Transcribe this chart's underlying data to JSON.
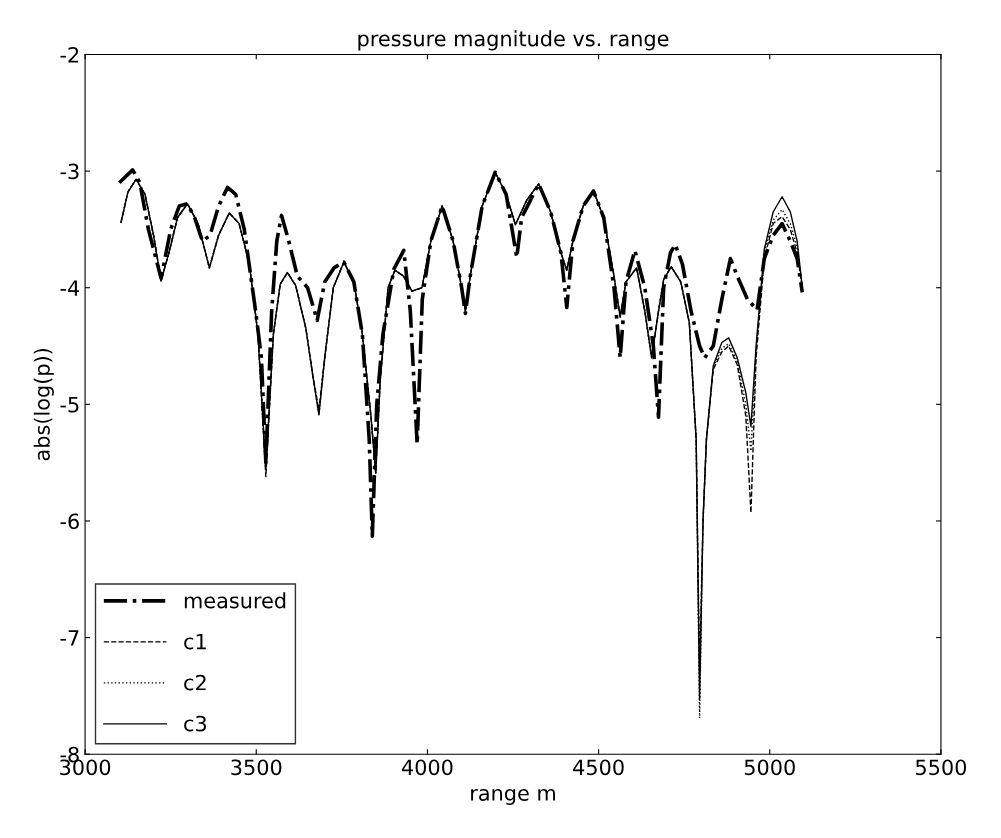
{
  "chart_data": {
    "type": "line",
    "title": "pressure magnitude vs. range",
    "xlabel": "range m",
    "ylabel": "abs(log(p))",
    "xlim": [
      3000,
      5500
    ],
    "xticks": [
      3000,
      3500,
      4000,
      4500,
      5000,
      5500
    ],
    "ylim": [
      -8,
      -2
    ],
    "yticks": [
      -8,
      -7,
      -6,
      -5,
      -4,
      -3,
      -2
    ],
    "grid": false,
    "legend": "bottom left",
    "marker": "none",
    "x": [
      3105,
      3125,
      3149,
      3175,
      3200,
      3222,
      3245,
      3270,
      3299,
      3330,
      3363,
      3390,
      3421,
      3450,
      3480,
      3505,
      3528,
      3550,
      3570,
      3591,
      3615,
      3645,
      3665,
      3683,
      3700,
      3725,
      3756,
      3785,
      3810,
      3835,
      3849,
      3862,
      3885,
      3905,
      3930,
      3955,
      3984,
      4010,
      4043,
      4075,
      4100,
      4111,
      4125,
      4160,
      4198,
      4230,
      4257,
      4290,
      4325,
      4360,
      4390,
      4407,
      4425,
      4455,
      4485,
      4515,
      4545,
      4563,
      4580,
      4611,
      4635,
      4655,
      4675,
      4690,
      4712,
      4740,
      4765,
      4785,
      4795,
      4805,
      4815,
      4835,
      4860,
      4880,
      4905,
      4930,
      4945,
      4960,
      4984,
      5010,
      5036,
      5060,
      5080,
      5095
    ],
    "series": [
      {
        "name": "measured",
        "color": "#000000",
        "line_style": "dashdot",
        "x": [
          3100,
          3139,
          3160,
          3185,
          3222,
          3250,
          3275,
          3299,
          3320,
          3343,
          3365,
          3390,
          3416,
          3440,
          3465,
          3499,
          3515,
          3528,
          3545,
          3560,
          3574,
          3595,
          3620,
          3650,
          3678,
          3700,
          3727,
          3756,
          3785,
          3810,
          3830,
          3839,
          3852,
          3870,
          3902,
          3931,
          3950,
          3970,
          3985,
          4010,
          4043,
          4075,
          4100,
          4111,
          4125,
          4160,
          4198,
          4230,
          4261,
          4275,
          4325,
          4360,
          4390,
          4407,
          4425,
          4455,
          4485,
          4515,
          4545,
          4563,
          4580,
          4606,
          4635,
          4660,
          4675,
          4690,
          4710,
          4724,
          4745,
          4770,
          4795,
          4810,
          4835,
          4860,
          4885,
          4905,
          4935,
          4963,
          4984,
          5010,
          5036,
          5060,
          5080,
          5095
        ],
        "values": [
          -3.1,
          -2.99,
          -3.1,
          -3.5,
          -3.92,
          -3.5,
          -3.3,
          -3.28,
          -3.4,
          -3.6,
          -3.55,
          -3.3,
          -3.14,
          -3.2,
          -3.5,
          -4.22,
          -4.6,
          -5.5,
          -4.2,
          -3.6,
          -3.38,
          -3.6,
          -3.9,
          -4.0,
          -4.28,
          -3.95,
          -3.83,
          -3.78,
          -3.95,
          -4.4,
          -5.3,
          -6.13,
          -5.0,
          -4.4,
          -3.84,
          -3.68,
          -4.2,
          -5.34,
          -4.1,
          -3.6,
          -3.3,
          -3.6,
          -4.0,
          -4.22,
          -3.9,
          -3.3,
          -3.01,
          -3.2,
          -3.74,
          -3.4,
          -3.11,
          -3.35,
          -3.7,
          -4.17,
          -3.6,
          -3.3,
          -3.17,
          -3.4,
          -4.0,
          -4.6,
          -3.95,
          -3.68,
          -4.0,
          -4.5,
          -5.11,
          -4.0,
          -3.7,
          -3.63,
          -3.8,
          -4.2,
          -4.5,
          -4.6,
          -4.5,
          -4.1,
          -3.75,
          -3.9,
          -4.1,
          -4.19,
          -3.75,
          -3.55,
          -3.45,
          -3.6,
          -3.75,
          -4.04
        ]
      },
      {
        "name": "c1",
        "color": "#000000",
        "line_style": "dashed",
        "values": [
          -3.44,
          -3.18,
          -3.07,
          -3.2,
          -3.55,
          -3.94,
          -3.7,
          -3.4,
          -3.28,
          -3.45,
          -3.83,
          -3.55,
          -3.36,
          -3.45,
          -3.8,
          -4.4,
          -5.62,
          -4.4,
          -3.97,
          -3.87,
          -3.98,
          -4.35,
          -4.75,
          -5.05,
          -4.6,
          -4.0,
          -3.78,
          -3.95,
          -4.4,
          -5.1,
          -5.59,
          -4.8,
          -4.0,
          -3.85,
          -3.9,
          -4.03,
          -4.0,
          -3.6,
          -3.3,
          -3.6,
          -4.0,
          -4.2,
          -3.9,
          -3.3,
          -3.01,
          -3.2,
          -3.46,
          -3.25,
          -3.11,
          -3.35,
          -3.7,
          -3.85,
          -3.6,
          -3.3,
          -3.17,
          -3.4,
          -3.9,
          -4.25,
          -3.95,
          -3.83,
          -4.2,
          -4.6,
          -4.2,
          -3.93,
          -3.82,
          -3.95,
          -4.3,
          -5.3,
          -7.3,
          -6.0,
          -5.3,
          -4.7,
          -4.55,
          -4.5,
          -4.66,
          -5.1,
          -5.93,
          -4.6,
          -3.75,
          -3.45,
          -3.39,
          -3.5,
          -3.7,
          -4.0
        ]
      },
      {
        "name": "c2",
        "color": "#000000",
        "line_style": "dotted",
        "values": [
          -3.44,
          -3.18,
          -3.07,
          -3.2,
          -3.55,
          -3.94,
          -3.7,
          -3.4,
          -3.28,
          -3.45,
          -3.83,
          -3.55,
          -3.36,
          -3.45,
          -3.8,
          -4.4,
          -5.56,
          -4.4,
          -3.97,
          -3.87,
          -3.98,
          -4.35,
          -4.75,
          -5.09,
          -4.6,
          -4.0,
          -3.78,
          -3.95,
          -4.4,
          -5.1,
          -5.59,
          -4.8,
          -4.0,
          -3.85,
          -3.9,
          -4.03,
          -4.0,
          -3.6,
          -3.3,
          -3.6,
          -4.0,
          -4.2,
          -3.9,
          -3.3,
          -3.01,
          -3.2,
          -3.46,
          -3.25,
          -3.11,
          -3.35,
          -3.7,
          -3.85,
          -3.6,
          -3.3,
          -3.17,
          -3.4,
          -3.9,
          -4.25,
          -3.95,
          -3.83,
          -4.2,
          -4.6,
          -4.2,
          -3.93,
          -3.82,
          -3.95,
          -4.3,
          -5.3,
          -7.69,
          -6.0,
          -5.3,
          -4.68,
          -4.52,
          -4.48,
          -4.63,
          -5.0,
          -5.4,
          -4.55,
          -3.7,
          -3.42,
          -3.33,
          -3.45,
          -3.65,
          -4.0
        ]
      },
      {
        "name": "c3",
        "color": "#000000",
        "line_style": "solid",
        "values": [
          -3.44,
          -3.18,
          -3.07,
          -3.2,
          -3.55,
          -3.94,
          -3.7,
          -3.4,
          -3.28,
          -3.45,
          -3.83,
          -3.55,
          -3.36,
          -3.45,
          -3.8,
          -4.4,
          -5.56,
          -4.4,
          -3.97,
          -3.87,
          -3.98,
          -4.35,
          -4.75,
          -5.09,
          -4.6,
          -4.0,
          -3.78,
          -3.95,
          -4.4,
          -5.1,
          -5.59,
          -4.8,
          -4.0,
          -3.85,
          -3.9,
          -4.03,
          -4.0,
          -3.6,
          -3.3,
          -3.6,
          -4.0,
          -4.2,
          -3.9,
          -3.3,
          -3.01,
          -3.2,
          -3.46,
          -3.25,
          -3.11,
          -3.35,
          -3.7,
          -3.85,
          -3.6,
          -3.3,
          -3.17,
          -3.4,
          -3.9,
          -4.25,
          -3.95,
          -3.83,
          -4.2,
          -4.6,
          -4.2,
          -3.93,
          -3.82,
          -3.95,
          -4.3,
          -5.3,
          -7.53,
          -6.0,
          -5.3,
          -4.67,
          -4.47,
          -4.43,
          -4.6,
          -4.9,
          -5.19,
          -4.5,
          -3.67,
          -3.35,
          -3.22,
          -3.35,
          -3.6,
          -4.0
        ]
      }
    ]
  }
}
